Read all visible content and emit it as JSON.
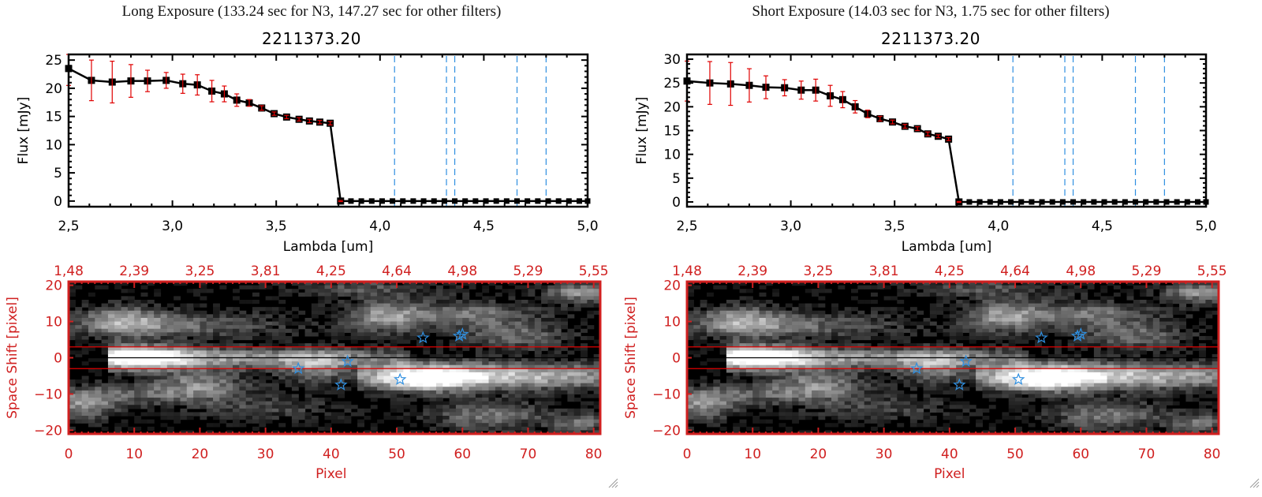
{
  "panels": [
    {
      "title": "Long Exposure (133.24 sec for N3, 147.27 sec for other filters)",
      "object_id": "2211373.20"
    },
    {
      "title": "Short Exposure (14.03 sec for N3, 1.75 sec for other filters)",
      "object_id": "2211373.20"
    }
  ],
  "colors": {
    "spectrum_line": "#000000",
    "error_bar": "#e00000",
    "filter_line": "#2f8fe0",
    "zero_line": "#e00000",
    "image_axes": "#d02020",
    "aperture_line": "#e00000",
    "center_line": "#000000",
    "star_marker": "#2f8fe0"
  },
  "chart_data": [
    {
      "type": "line",
      "panel": "long-exposure-spectrum",
      "title": "2211373.20",
      "xlabel": "Lambda [um]",
      "ylabel": "Flux [mJy]",
      "xlim": [
        2.5,
        5.0
      ],
      "ylim": [
        -1,
        26
      ],
      "xticks": [
        "2.5",
        "3.0",
        "3.5",
        "4.0",
        "4.5",
        "5.0"
      ],
      "xtick_values": [
        2.5,
        3.0,
        3.5,
        4.0,
        4.5,
        5.0
      ],
      "yticks": [
        "0",
        "5",
        "10",
        "15",
        "20",
        "25"
      ],
      "ytick_values": [
        0,
        5,
        10,
        15,
        20,
        25
      ],
      "x": [
        2.5,
        2.61,
        2.71,
        2.8,
        2.88,
        2.97,
        3.05,
        3.12,
        3.19,
        3.25,
        3.31,
        3.37,
        3.43,
        3.49,
        3.55,
        3.61,
        3.66,
        3.71,
        3.76,
        3.81
      ],
      "y": [
        23.5,
        21.4,
        21.1,
        21.3,
        21.3,
        21.4,
        20.8,
        20.6,
        19.5,
        19.0,
        17.9,
        17.4,
        16.5,
        15.5,
        14.9,
        14.5,
        14.2,
        14.0,
        13.8,
        0
      ],
      "yerr": [
        3.0,
        3.6,
        3.7,
        2.9,
        1.9,
        1.4,
        1.7,
        1.8,
        1.9,
        1.4,
        1.1,
        0.6,
        0.4,
        0.3,
        0.3,
        0.3,
        0.3,
        0.3,
        0.3,
        0.1
      ],
      "zero_x": [
        3.81,
        3.86,
        3.91,
        3.96,
        4.01,
        4.06,
        4.11,
        4.16,
        4.21,
        4.26,
        4.31,
        4.36,
        4.41,
        4.46,
        4.51,
        4.56,
        4.61,
        4.66,
        4.71,
        4.76,
        4.81,
        4.86,
        4.91,
        4.96,
        5.0
      ],
      "filter_lines_x": [
        4.07,
        4.32,
        4.36,
        4.66,
        4.8
      ]
    },
    {
      "type": "line",
      "panel": "short-exposure-spectrum",
      "title": "2211373.20",
      "xlabel": "Lambda [um]",
      "ylabel": "Flux [mJy]",
      "xlim": [
        2.5,
        5.0
      ],
      "ylim": [
        -1,
        31
      ],
      "xticks": [
        "2.5",
        "3.0",
        "3.5",
        "4.0",
        "4.5",
        "5.0"
      ],
      "xtick_values": [
        2.5,
        3.0,
        3.5,
        4.0,
        4.5,
        5.0
      ],
      "yticks": [
        "0",
        "5",
        "10",
        "15",
        "20",
        "25",
        "30"
      ],
      "ytick_values": [
        0,
        5,
        10,
        15,
        20,
        25,
        30
      ],
      "x": [
        2.5,
        2.61,
        2.71,
        2.8,
        2.88,
        2.97,
        3.05,
        3.12,
        3.19,
        3.25,
        3.31,
        3.37,
        3.43,
        3.49,
        3.55,
        3.61,
        3.66,
        3.71,
        3.76,
        3.81
      ],
      "y": [
        25.4,
        25.0,
        24.8,
        24.5,
        24.1,
        24.0,
        23.5,
        23.5,
        22.3,
        21.5,
        20.0,
        18.5,
        17.5,
        16.8,
        15.9,
        15.4,
        14.3,
        13.8,
        13.2,
        0
      ],
      "yerr": [
        4.2,
        4.5,
        4.5,
        3.5,
        2.4,
        1.7,
        1.9,
        2.3,
        2.2,
        1.7,
        1.3,
        0.8,
        0.5,
        0.4,
        0.4,
        0.4,
        0.4,
        0.3,
        0.3,
        0.1
      ],
      "zero_x": [
        3.81,
        3.86,
        3.91,
        3.96,
        4.01,
        4.06,
        4.11,
        4.16,
        4.21,
        4.26,
        4.31,
        4.36,
        4.41,
        4.46,
        4.51,
        4.56,
        4.61,
        4.66,
        4.71,
        4.76,
        4.81,
        4.86,
        4.91,
        4.96,
        5.0
      ],
      "filter_lines_x": [
        4.07,
        4.32,
        4.36,
        4.66,
        4.8
      ]
    },
    {
      "type": "heatmap",
      "panel": "long-exposure-image",
      "xlabel": "Pixel",
      "ylabel": "Space Shift [pixel]",
      "xlim": [
        0,
        81
      ],
      "ylim": [
        -21,
        21
      ],
      "xticks": [
        "0",
        "10",
        "20",
        "30",
        "40",
        "50",
        "60",
        "70",
        "80"
      ],
      "xtick_values": [
        0,
        10,
        20,
        30,
        40,
        50,
        60,
        70,
        80
      ],
      "yticks": [
        "-20",
        "-10",
        "0",
        "10",
        "20"
      ],
      "ytick_values": [
        -20,
        -10,
        0,
        10,
        20
      ],
      "top_ticks": [
        "1.48",
        "2.39",
        "3.25",
        "3.81",
        "4.25",
        "4.64",
        "4.98",
        "5.29",
        "5.55"
      ],
      "aperture_y": [
        3,
        -3
      ],
      "center_y": 0,
      "stars": [
        [
          35,
          -3
        ],
        [
          42.5,
          -1
        ],
        [
          41.5,
          -7.5
        ],
        [
          50.5,
          -6
        ],
        [
          54,
          5.5
        ],
        [
          59.5,
          6
        ],
        [
          60,
          6.5
        ]
      ]
    },
    {
      "type": "heatmap",
      "panel": "short-exposure-image",
      "xlabel": "Pixel",
      "ylabel": "Space Shift [pixel]",
      "xlim": [
        0,
        81
      ],
      "ylim": [
        -21,
        21
      ],
      "xticks": [
        "0",
        "10",
        "20",
        "30",
        "40",
        "50",
        "60",
        "70",
        "80"
      ],
      "xtick_values": [
        0,
        10,
        20,
        30,
        40,
        50,
        60,
        70,
        80
      ],
      "yticks": [
        "-20",
        "-10",
        "0",
        "10",
        "20"
      ],
      "ytick_values": [
        -20,
        -10,
        0,
        10,
        20
      ],
      "top_ticks": [
        "1.48",
        "2.39",
        "3.25",
        "3.81",
        "4.25",
        "4.64",
        "4.98",
        "5.29",
        "5.55"
      ],
      "aperture_y": [
        3,
        -3
      ],
      "center_y": 0,
      "stars": [
        [
          35,
          -3
        ],
        [
          42.5,
          -1
        ],
        [
          41.5,
          -7.5
        ],
        [
          50.5,
          -6
        ],
        [
          54,
          5.5
        ],
        [
          59.5,
          6
        ],
        [
          60,
          6.5
        ]
      ]
    }
  ]
}
